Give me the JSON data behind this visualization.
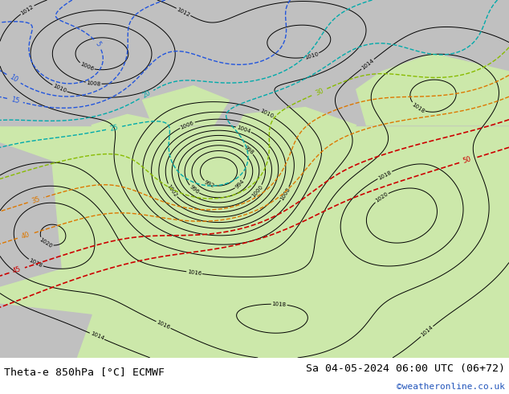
{
  "title_left": "Theta-e 850hPa [°C] ECMWF",
  "title_right": "Sa 04-05-2024 06:00 UTC (06+72)",
  "credit": "©weatheronline.co.uk",
  "title_fontsize": 9.5,
  "credit_fontsize": 8.0,
  "bg_color": "#ffffff",
  "map_bg_light": "#cce8aa",
  "map_bg_gray": "#c0c0c0",
  "fig_width": 6.34,
  "fig_height": 4.9,
  "dpi": 100,
  "bottom_bar_height": 0.092
}
